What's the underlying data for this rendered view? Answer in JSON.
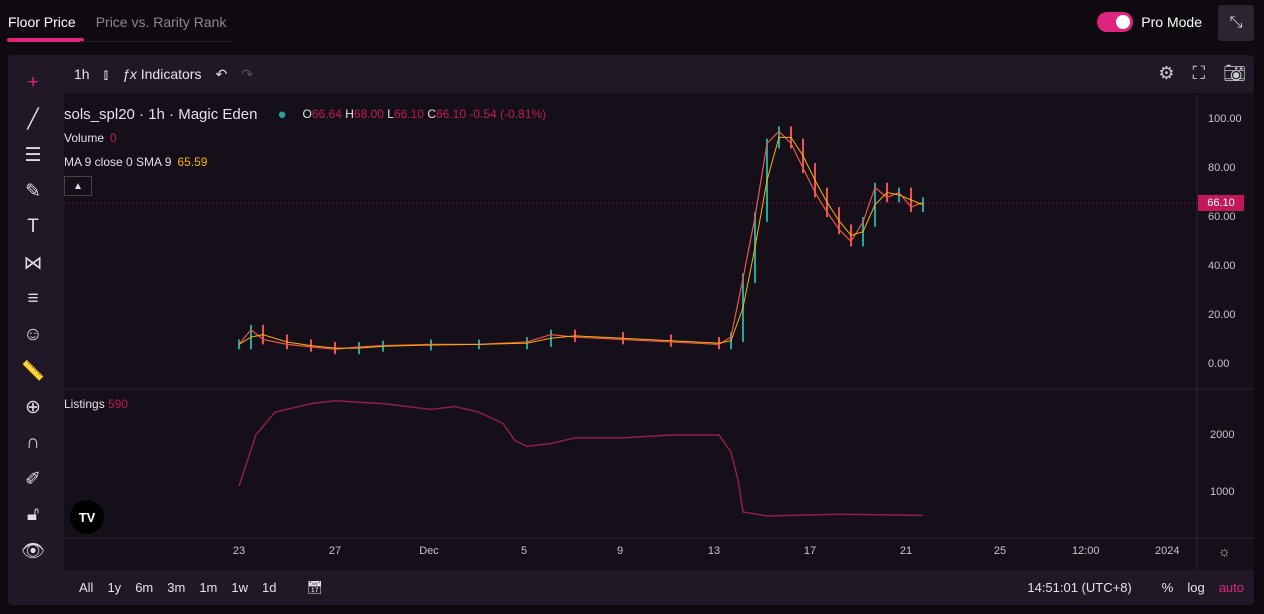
{
  "tabs": [
    {
      "label": "Floor Price",
      "active": true
    },
    {
      "label": "Price vs. Rarity Rank",
      "active": false
    }
  ],
  "pro_mode": {
    "label": "Pro Mode",
    "on": true
  },
  "toolbar": {
    "interval": "1h",
    "indicators": "Indicators"
  },
  "legend": {
    "symbol": "sols_spl20 · 1h · Magic Eden",
    "o_label": "O",
    "o": "66.64",
    "h_label": "H",
    "h": "68.00",
    "l_label": "L",
    "l": "66.10",
    "c_label": "C",
    "c": "66.10",
    "change": "-0.54 (-0.81%)",
    "volume_label": "Volume",
    "volume": "0",
    "ma_label": "MA 9 close 0 SMA 9",
    "ma": "65.59",
    "listings_label": "Listings",
    "listings": "590"
  },
  "price_axis": [
    "100.00",
    "80.00",
    "60.00",
    "40.00",
    "20.00",
    "0.00"
  ],
  "last_price": "66.10",
  "listings_axis": [
    "2000",
    "1000"
  ],
  "time_axis": [
    "23",
    "27",
    "Dec",
    "5",
    "9",
    "13",
    "17",
    "21",
    "25",
    "12:00",
    "2024"
  ],
  "bottom": {
    "ranges": [
      "All",
      "1y",
      "6m",
      "3m",
      "1m",
      "1w",
      "1d"
    ],
    "time": "14:51:01 (UTC+8)",
    "percent": "%",
    "log": "log",
    "auto": "auto"
  },
  "colors": {
    "accent": "#e0237c",
    "up": "#26a69a",
    "down": "#ef5350",
    "ma": "#f5b301",
    "listings": "#8e1f4a"
  },
  "chart_data": {
    "type": "line",
    "price": {
      "x": [
        "11-23",
        "11-23.5",
        "11-24",
        "11-25",
        "11-26",
        "11-27",
        "11-28",
        "11-29",
        "12-01",
        "12-03",
        "12-05",
        "12-06",
        "12-07",
        "12-09",
        "12-11",
        "12-13",
        "12-13.5",
        "12-14",
        "12-14.5",
        "12-15",
        "12-15.5",
        "12-16",
        "12-16.5",
        "12-17",
        "12-17.5",
        "12-18",
        "12-18.5",
        "12-19",
        "12-19.5",
        "12-20",
        "12-20.5",
        "12-21",
        "12-21.5"
      ],
      "y": [
        8,
        14,
        10,
        8,
        7,
        6,
        7,
        7.5,
        8,
        8,
        9,
        12,
        11,
        10,
        9,
        8,
        11,
        35,
        60,
        90,
        95,
        90,
        80,
        70,
        62,
        55,
        50,
        58,
        72,
        68,
        70,
        64,
        66
      ]
    },
    "listings": {
      "x": [
        "11-23",
        "11-23.7",
        "11-24.5",
        "11-26",
        "11-27",
        "11-29",
        "11-30",
        "12-01",
        "12-02",
        "12-03",
        "12-04",
        "12-04.5",
        "12-05",
        "12-06",
        "12-07",
        "12-09",
        "12-11",
        "12-13",
        "12-13.5",
        "12-13.8",
        "12-14",
        "12-15",
        "12-16",
        "12-18",
        "12-21.5"
      ],
      "y": [
        1100,
        2000,
        2400,
        2550,
        2600,
        2550,
        2500,
        2450,
        2500,
        2400,
        2200,
        1900,
        1800,
        1850,
        1950,
        1950,
        2000,
        2000,
        1700,
        1200,
        650,
        580,
        590,
        610,
        590
      ]
    },
    "price_ylim": [
      0,
      100
    ],
    "listings_ylim": [
      0,
      2600
    ]
  }
}
